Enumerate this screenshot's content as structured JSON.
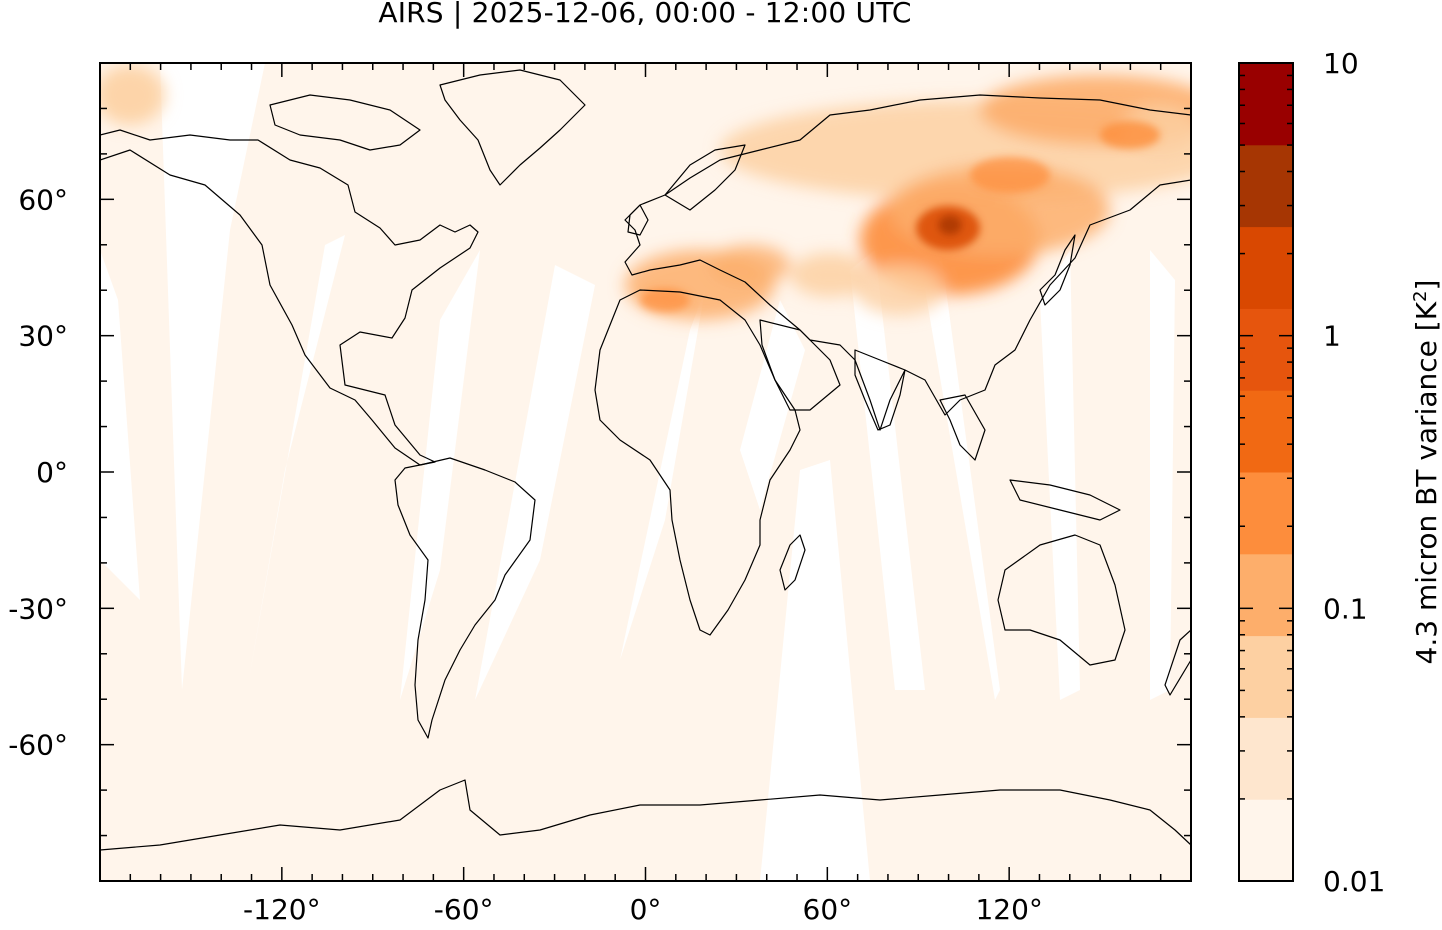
{
  "title": "AIRS | 2025-12-06, 00:00 - 12:00 UTC",
  "map": {
    "projection": "plate-carree",
    "lon_range": [
      -180,
      180
    ],
    "lat_range": [
      -90,
      90
    ],
    "lon_ticks": [
      {
        "value": -120,
        "label": "-120°"
      },
      {
        "value": -60,
        "label": "-60°"
      },
      {
        "value": 0,
        "label": "0°"
      },
      {
        "value": 60,
        "label": "60°"
      },
      {
        "value": 120,
        "label": "120°"
      }
    ],
    "lat_ticks": [
      {
        "value": 60,
        "label": "60°"
      },
      {
        "value": 30,
        "label": "30°"
      },
      {
        "value": 0,
        "label": "0°"
      },
      {
        "value": -30,
        "label": "-30°"
      },
      {
        "value": -60,
        "label": "-60°"
      }
    ],
    "background_color": "#fff5eb",
    "gap_color": "#ffffff"
  },
  "colorbar": {
    "label_main": "4.3 micron BT variance [K",
    "label_sup": "2",
    "label_end": "]",
    "scale": "log",
    "range": [
      0.01,
      10
    ],
    "ticks": [
      {
        "value": 10,
        "label": "10"
      },
      {
        "value": 1,
        "label": "1"
      },
      {
        "value": 0.1,
        "label": "0.1"
      },
      {
        "value": 0.01,
        "label": "0.01"
      }
    ],
    "colors": [
      "#fff5eb",
      "#fee6ce",
      "#fdd0a2",
      "#fdae6b",
      "#fd8d3c",
      "#f16913",
      "#e6550d",
      "#d94801",
      "#a63603",
      "#990000"
    ]
  }
}
